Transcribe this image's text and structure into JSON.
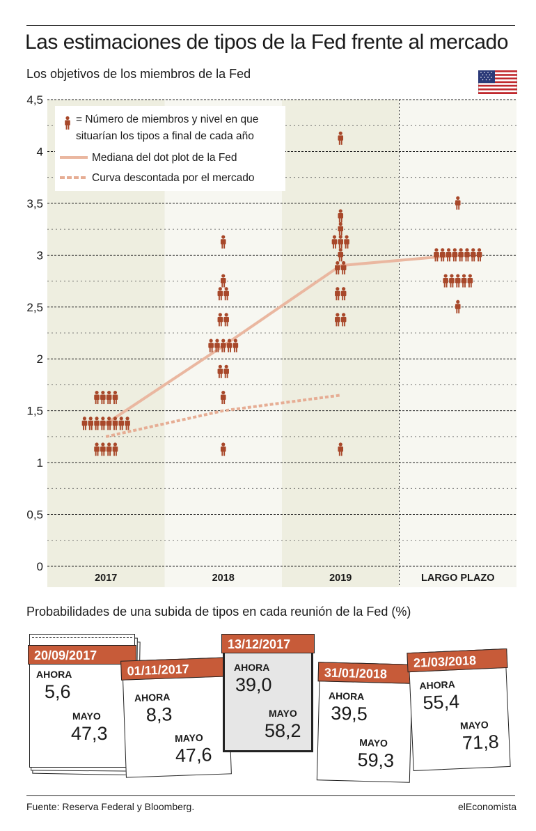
{
  "header": {
    "title": "Las estimaciones de tipos de la Fed frente al mercado",
    "subtitle": "Los objetivos de los miembros de la Fed"
  },
  "colors": {
    "dot": "#a8482a",
    "median": "#eab7a0",
    "market": "#e6ad94",
    "band": "#eeeee0",
    "band_light": "#f7f7f1",
    "tab": "#c75b39",
    "highlight_card": "#e6e6e6"
  },
  "chart_data": {
    "type": "scatter",
    "ylim": [
      0,
      4.5
    ],
    "yticks": [
      0,
      0.5,
      1,
      1.5,
      2,
      2.5,
      3,
      3.5,
      4,
      4.5
    ],
    "ytick_labels": [
      "0",
      "0,5",
      "1",
      "1,5",
      "2",
      "2,5",
      "3",
      "3,5",
      "4",
      "4,5"
    ],
    "categories": [
      "2017",
      "2018",
      "2019",
      "LARGO PLAZO"
    ],
    "legend": [
      {
        "key": "dots",
        "label_lines": [
          "= Número de miembros y nivel en que",
          "situarían los tipos a final de cada año"
        ]
      },
      {
        "key": "median",
        "label_lines": [
          "Mediana del dot plot de la Fed"
        ]
      },
      {
        "key": "market",
        "label_lines": [
          "Curva descontada por el mercado"
        ]
      }
    ],
    "dot_plot": [
      {
        "category": "2017",
        "points": [
          {
            "rate": 1.125,
            "count": 4
          },
          {
            "rate": 1.375,
            "count": 8
          },
          {
            "rate": 1.625,
            "count": 4
          }
        ]
      },
      {
        "category": "2018",
        "points": [
          {
            "rate": 1.125,
            "count": 1
          },
          {
            "rate": 1.625,
            "count": 1
          },
          {
            "rate": 1.875,
            "count": 2
          },
          {
            "rate": 2.125,
            "count": 5
          },
          {
            "rate": 2.375,
            "count": 2
          },
          {
            "rate": 2.625,
            "count": 2
          },
          {
            "rate": 2.75,
            "count": 1
          },
          {
            "rate": 3.125,
            "count": 1
          }
        ]
      },
      {
        "category": "2019",
        "points": [
          {
            "rate": 1.125,
            "count": 1
          },
          {
            "rate": 2.375,
            "count": 2
          },
          {
            "rate": 2.625,
            "count": 2
          },
          {
            "rate": 2.875,
            "count": 2
          },
          {
            "rate": 3.0,
            "count": 1
          },
          {
            "rate": 3.125,
            "count": 3
          },
          {
            "rate": 3.25,
            "count": 1
          },
          {
            "rate": 3.375,
            "count": 1
          },
          {
            "rate": 4.125,
            "count": 1
          }
        ]
      },
      {
        "category": "LARGO PLAZO",
        "points": [
          {
            "rate": 2.5,
            "count": 1
          },
          {
            "rate": 2.75,
            "count": 5
          },
          {
            "rate": 3.0,
            "count": 8
          },
          {
            "rate": 3.5,
            "count": 1
          }
        ]
      }
    ],
    "series": [
      {
        "name": "Mediana del dot plot de la Fed",
        "x": [
          "2017",
          "2018",
          "2019",
          "LARGO PLAZO"
        ],
        "values": [
          1.375,
          2.125,
          2.9,
          3.0
        ]
      },
      {
        "name": "Curva descontada por el mercado",
        "x": [
          "2017",
          "2018",
          "2019"
        ],
        "values": [
          1.25,
          1.5,
          1.65
        ]
      }
    ]
  },
  "bottom": {
    "title": "Probabilidades de una subida de tipos en cada reunión de la Fed (%)",
    "cards": [
      {
        "date": "20/09/2017",
        "now_label": "AHORA",
        "now_value": "5,6",
        "may_label": "MAYO",
        "may_value": "47,3"
      },
      {
        "date": "01/11/2017",
        "now_label": "AHORA",
        "now_value": "8,3",
        "may_label": "MAYO",
        "may_value": "47,6"
      },
      {
        "date": "13/12/2017",
        "now_label": "AHORA",
        "now_value": "39,0",
        "may_label": "MAYO",
        "may_value": "58,2"
      },
      {
        "date": "31/01/2018",
        "now_label": "AHORA",
        "now_value": "39,5",
        "may_label": "MAYO",
        "may_value": "59,3"
      },
      {
        "date": "21/03/2018",
        "now_label": "AHORA",
        "now_value": "55,4",
        "may_label": "MAYO",
        "may_value": "71,8"
      }
    ]
  },
  "footer": {
    "source": "Fuente: Reserva Federal y Bloomberg.",
    "brand": "elEconomista"
  }
}
